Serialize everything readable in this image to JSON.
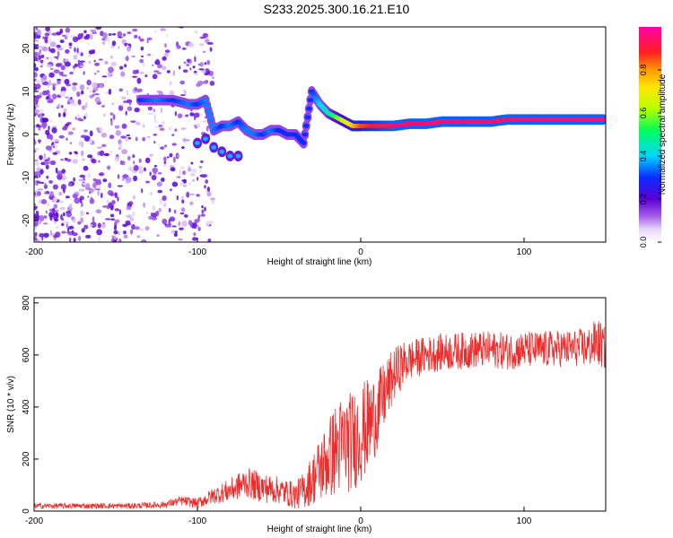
{
  "title": "S233.2025.300.16.21.E10",
  "chart_data": [
    {
      "type": "heatmap",
      "xlabel": "Height of straight line (km)",
      "ylabel": "Frequency (Hz)",
      "xlim": [
        -200,
        150
      ],
      "ylim": [
        -25,
        25
      ],
      "xticks": [
        -200,
        -100,
        0,
        100
      ],
      "yticks": [
        -20,
        -10,
        0,
        10,
        20
      ],
      "colorbar": {
        "label": "Normalized spectral amplitude",
        "range": [
          0,
          1
        ],
        "ticks": [
          "0.0",
          "0.2",
          "0.4",
          "0.6",
          "0.8"
        ],
        "colormap": "rainbow (white-violet-blue-cyan-green-yellow-orange-red-magenta)"
      },
      "ridge": {
        "x": [
          -135,
          -125,
          -115,
          -105,
          -100,
          -95,
          -90,
          -85,
          -80,
          -75,
          -70,
          -65,
          -60,
          -55,
          -50,
          -45,
          -40,
          -35,
          -30,
          -25,
          -20,
          -15,
          -10,
          -5,
          0,
          10,
          20,
          30,
          40,
          50,
          60,
          70,
          80,
          90,
          100,
          110,
          120,
          130,
          140,
          150
        ],
        "y": [
          8,
          8,
          8,
          7,
          7,
          8,
          1,
          2,
          2,
          3,
          1,
          0,
          0,
          1,
          1,
          0,
          0,
          -2,
          10,
          7,
          5,
          4,
          3,
          2,
          2,
          2,
          2,
          2.5,
          2.5,
          3,
          3,
          3,
          3,
          3.5,
          3.5,
          3.5,
          3.5,
          3.5,
          3.5,
          3.5
        ],
        "amplitude": [
          0.3,
          0.35,
          0.3,
          0.35,
          0.3,
          0.35,
          0.35,
          0.3,
          0.35,
          0.3,
          0.35,
          0.35,
          0.3,
          0.35,
          0.3,
          0.3,
          0.3,
          0.3,
          0.3,
          0.4,
          0.45,
          0.55,
          0.65,
          0.75,
          0.85,
          0.9,
          0.95,
          0.95,
          0.95,
          0.95,
          0.95,
          0.95,
          0.95,
          0.95,
          0.95,
          0.95,
          0.95,
          0.95,
          0.95,
          0.95
        ]
      },
      "lower_branch": {
        "x": [
          -100,
          -95,
          -90,
          -85,
          -80,
          -75
        ],
        "y": [
          -2,
          -1,
          -3,
          -4,
          -5,
          -5
        ]
      }
    },
    {
      "type": "line",
      "xlabel": "Height of straight line (km)",
      "ylabel": "SNR (10 * v/v)",
      "xlim": [
        -200,
        150
      ],
      "ylim": [
        0,
        820
      ],
      "xticks": [
        -200,
        -100,
        0,
        100
      ],
      "yticks": [
        0,
        200,
        400,
        600,
        800
      ],
      "series": [
        {
          "name": "SNR",
          "color": "#ee2a2a",
          "x": [
            -200,
            -180,
            -160,
            -140,
            -120,
            -110,
            -100,
            -90,
            -80,
            -70,
            -60,
            -50,
            -40,
            -35,
            -30,
            -25,
            -20,
            -15,
            -10,
            -5,
            0,
            5,
            10,
            15,
            20,
            25,
            30,
            40,
            50,
            60,
            70,
            80,
            90,
            100,
            110,
            120,
            130,
            140,
            145,
            150
          ],
          "y": [
            20,
            20,
            20,
            20,
            25,
            40,
            30,
            60,
            80,
            110,
            90,
            80,
            60,
            80,
            120,
            160,
            200,
            240,
            260,
            270,
            300,
            330,
            380,
            450,
            520,
            560,
            580,
            600,
            610,
            615,
            620,
            620,
            615,
            620,
            620,
            625,
            625,
            630,
            650,
            620
          ],
          "noise_amplitude": [
            8,
            8,
            8,
            8,
            10,
            14,
            15,
            25,
            35,
            45,
            45,
            40,
            40,
            55,
            75,
            100,
            120,
            140,
            150,
            150,
            150,
            140,
            120,
            100,
            80,
            70,
            60,
            55,
            55,
            55,
            55,
            55,
            55,
            55,
            55,
            55,
            55,
            60,
            75,
            60
          ]
        }
      ]
    }
  ]
}
